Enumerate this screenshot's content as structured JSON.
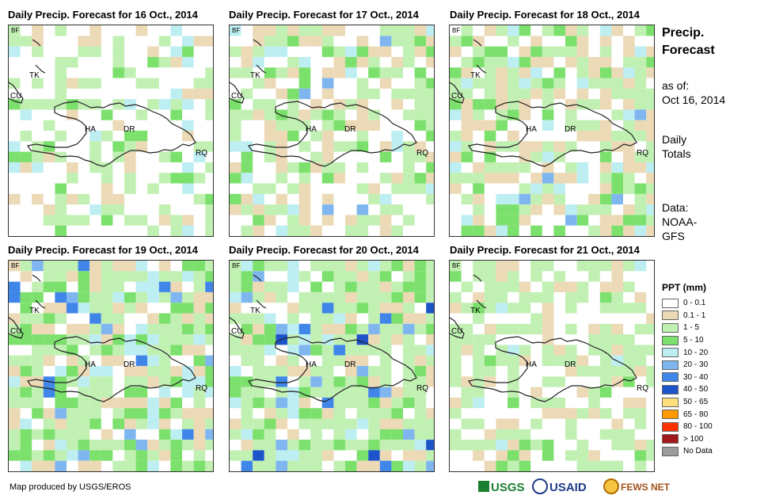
{
  "panels": [
    {
      "title": "Daily Precip. Forecast for 16 Oct., 2014",
      "cells": "p16"
    },
    {
      "title": "Daily Precip. Forecast for 17 Oct., 2014",
      "cells": "p17"
    },
    {
      "title": "Daily Precip. Forecast for 18 Oct., 2014",
      "cells": "p18"
    },
    {
      "title": "Daily Precip. Forecast for 19 Oct., 2014",
      "cells": "p19"
    },
    {
      "title": "Daily Precip. Forecast for 20 Oct., 2014",
      "cells": "p20"
    },
    {
      "title": "Daily Precip. Forecast for 21 Oct., 2014",
      "cells": "p21"
    }
  ],
  "map_labels": {
    "bf": "BF",
    "cu": "CU",
    "tk": "TK",
    "ha": "HA",
    "dr": "DR",
    "rq": "RQ"
  },
  "side": {
    "title_line1": "Precip.",
    "title_line2": "Forecast",
    "asof_line1": "as of:",
    "asof_line2": "Oct 16, 2014",
    "daily_line1": "Daily",
    "daily_line2": "Totals",
    "data_line1": "Data:",
    "data_line2": "NOAA-",
    "data_line3": "GFS"
  },
  "legend": {
    "title": "PPT (mm)",
    "items": [
      {
        "label": "0 - 0.1",
        "color": "#ffffff"
      },
      {
        "label": "0.1 - 1",
        "color": "#ecd9b6"
      },
      {
        "label": "1 - 5",
        "color": "#c1f0b3"
      },
      {
        "label": "5 - 10",
        "color": "#7ce06d"
      },
      {
        "label": "10 - 20",
        "color": "#bdeef2"
      },
      {
        "label": "20 - 30",
        "color": "#7fb6f0"
      },
      {
        "label": "30 - 40",
        "color": "#3f86e8"
      },
      {
        "label": "40 - 50",
        "color": "#1d54c9"
      },
      {
        "label": "50 - 65",
        "color": "#ffe07a"
      },
      {
        "label": "65 - 80",
        "color": "#ff9a00"
      },
      {
        "label": "80 - 100",
        "color": "#ff3300"
      },
      {
        "label": "> 100",
        "color": "#a31818"
      },
      {
        "label": "No Data",
        "color": "#9b9b9b"
      }
    ]
  },
  "footer": "Map produced by USGS/EROS",
  "logos": {
    "usgs": "USGS",
    "usaid": "USAID",
    "fewsnet": "FEWS NET"
  }
}
